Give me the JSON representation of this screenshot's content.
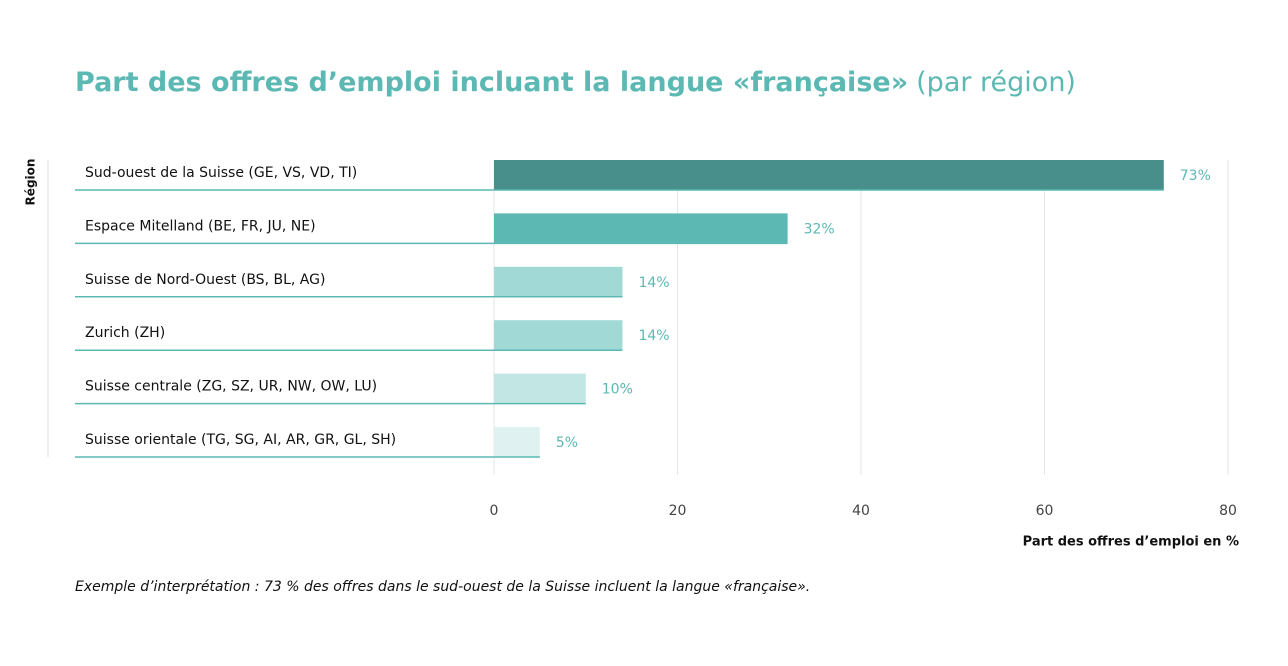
{
  "chart_data": {
    "type": "hbar",
    "title": "Part des offres d’emploi incluant la langue «française»",
    "subtitle": "(par région)",
    "y_label": "Région",
    "x_label": "Part des offres d’emploi en %",
    "note": "Exemple d’interprétation : 73 % des offres dans le sud-ouest de la Suisse incluent la langue «française».",
    "categories": [
      "Sud-ouest de la Suisse (GE, VS, VD, TI)",
      "Espace Mitelland (BE, FR, JU, NE)",
      "Suisse de Nord-Ouest (BS, BL, AG)",
      "Zurich (ZH)",
      "Suisse centrale (ZG, SZ, UR, NW, OW, LU)",
      "Suisse orientale (TG, SG, AI, AR, GR, GL, SH)"
    ],
    "values": [
      73,
      32,
      14,
      14,
      10,
      5
    ],
    "value_labels": [
      "73%",
      "32%",
      "14%",
      "14%",
      "10%",
      "5%"
    ],
    "colors": [
      "#488f8b",
      "#5cb8b3",
      "#a1d9d6",
      "#a1d9d6",
      "#c1e6e4",
      "#dff2f1"
    ],
    "xlim": [
      0,
      80
    ],
    "xticks": [
      0,
      20,
      40,
      60,
      80
    ],
    "grid": true
  }
}
